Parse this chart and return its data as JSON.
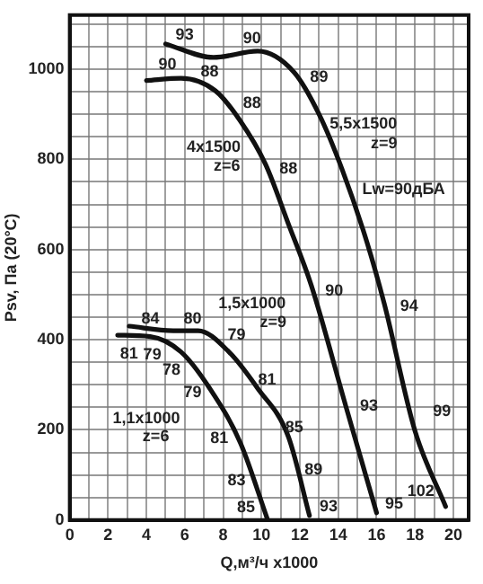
{
  "chart_data": {
    "type": "line",
    "xlabel": "Q,м³/ч x1000",
    "ylabel": "Psv, Па (20°C)",
    "xlim": [
      0,
      20.8
    ],
    "ylim": [
      0,
      1120
    ],
    "xticks": [
      0,
      {
        "value": 1,
        "label": null
      },
      2,
      {
        "value": 3,
        "label": null
      },
      4,
      {
        "value": 5,
        "label": null
      },
      6,
      {
        "value": 7,
        "label": null
      },
      8,
      {
        "value": 9,
        "label": null
      },
      10,
      {
        "value": 11,
        "label": null
      },
      12,
      {
        "value": 13,
        "label": null
      },
      14,
      {
        "value": 15,
        "label": null
      },
      16,
      {
        "value": 17,
        "label": null
      },
      18,
      {
        "value": 19,
        "label": null
      },
      20
    ],
    "yticks": [
      0,
      {
        "value": 50,
        "label": null
      },
      {
        "value": 100,
        "label": null
      },
      {
        "value": 150,
        "label": null
      },
      200,
      {
        "value": 250,
        "label": null
      },
      {
        "value": 300,
        "label": null
      },
      {
        "value": 350,
        "label": null
      },
      400,
      {
        "value": 450,
        "label": null
      },
      {
        "value": 500,
        "label": null
      },
      {
        "value": 550,
        "label": null
      },
      600,
      {
        "value": 650,
        "label": null
      },
      {
        "value": 700,
        "label": null
      },
      {
        "value": 750,
        "label": null
      },
      800,
      {
        "value": 850,
        "label": null
      },
      {
        "value": 900,
        "label": null
      },
      {
        "value": 950,
        "label": null
      },
      1000,
      {
        "value": 1050,
        "label": null
      },
      {
        "value": 1100,
        "label": null
      }
    ],
    "grid": true,
    "marker": "none",
    "line_style": "solid",
    "series": [
      {
        "color": "#111111",
        "x": [
          5.0,
          7.5,
          9.8,
          11.7,
          13.0,
          14.2,
          15.5,
          16.4,
          18.0,
          19.6
        ],
        "values": [
          1056,
          1026,
          1040,
          993,
          900,
          778,
          616,
          480,
          198,
          30
        ]
      },
      {
        "color": "#111111",
        "x": [
          4.0,
          5.8,
          7.6,
          8.9,
          10.2,
          11.4,
          12.6,
          14.4,
          16.0
        ],
        "values": [
          975,
          980,
          952,
          885,
          790,
          657,
          520,
          252,
          16
        ]
      },
      {
        "color": "#111111",
        "x": [
          3.1,
          5.4,
          6.7,
          8.3,
          9.8,
          11.4,
          12.5
        ],
        "values": [
          430,
          420,
          420,
          373,
          292,
          185,
          10
        ]
      },
      {
        "color": "#111111",
        "x": [
          2.5,
          4.2,
          5.8,
          7.3,
          8.9,
          10.3
        ],
        "values": [
          410,
          407,
          373,
          292,
          171,
          3
        ]
      }
    ],
    "annotations": [
      "93",
      "90",
      "89",
      "90",
      "88",
      "88",
      "88",
      "5,5x1500",
      "z=9",
      "4x1500",
      "z=6",
      "Lw=90дБА",
      "90",
      "94",
      "1,5x1000",
      "z=9",
      "84",
      "80",
      "79",
      "81",
      "79",
      "78",
      "79",
      "81",
      "93",
      "99",
      "1,1x1000",
      "z=6",
      "81",
      "85",
      "89",
      "83",
      "85",
      "93",
      "95",
      "102"
    ]
  }
}
